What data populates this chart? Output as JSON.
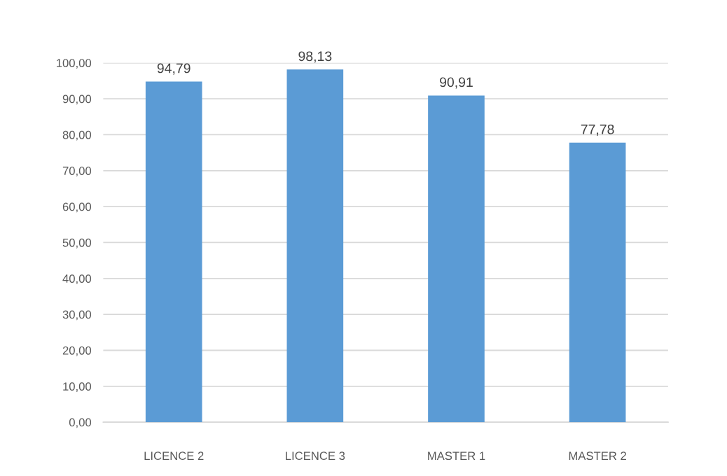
{
  "chart_data": {
    "type": "bar",
    "categories": [
      "LICENCE 2",
      "LICENCE 3",
      "MASTER 1",
      "MASTER 2"
    ],
    "values": [
      94.79,
      98.13,
      90.91,
      77.78
    ],
    "value_labels": [
      "94,79",
      "98,13",
      "90,91",
      "77,78"
    ],
    "color": "#5b9bd5",
    "ylim": [
      0,
      100
    ],
    "yticks": [
      {
        "value": 0,
        "label": "0,00"
      },
      {
        "value": 10,
        "label": "10,00"
      },
      {
        "value": 20,
        "label": "20,00"
      },
      {
        "value": 30,
        "label": "30,00"
      },
      {
        "value": 40,
        "label": "40,00"
      },
      {
        "value": 50,
        "label": "50,00"
      },
      {
        "value": 60,
        "label": "60,00"
      },
      {
        "value": 70,
        "label": "70,00"
      },
      {
        "value": 80,
        "label": "80,00"
      },
      {
        "value": 90,
        "label": "90,00"
      },
      {
        "value": 100,
        "label": "100,00"
      }
    ],
    "grid": "y",
    "legend": false
  }
}
